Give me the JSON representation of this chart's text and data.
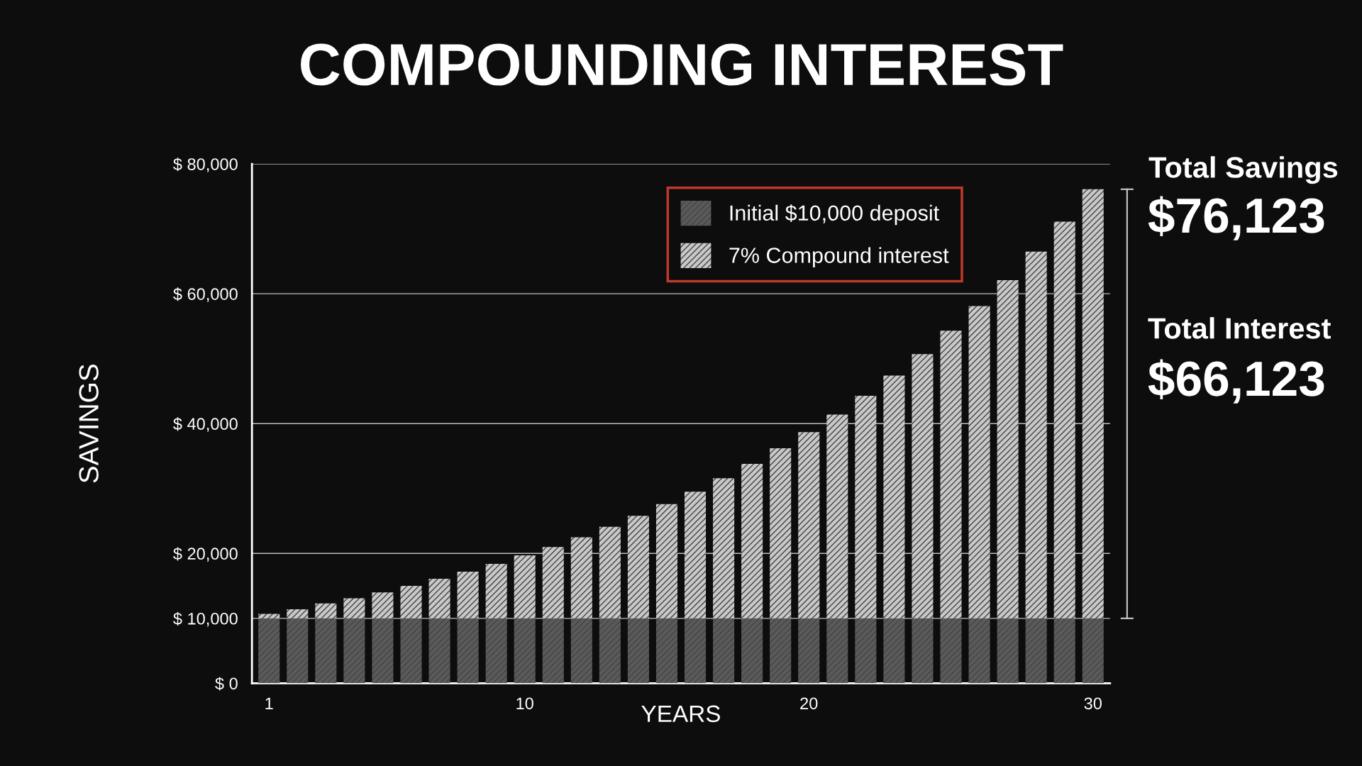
{
  "chart_data": {
    "type": "bar",
    "stacked": true,
    "title": "COMPOUNDING INTEREST",
    "xlabel": "YEARS",
    "ylabel": "SAVINGS",
    "x": [
      1,
      2,
      3,
      4,
      5,
      6,
      7,
      8,
      9,
      10,
      11,
      12,
      13,
      14,
      15,
      16,
      17,
      18,
      19,
      20,
      21,
      22,
      23,
      24,
      25,
      26,
      27,
      28,
      29,
      30
    ],
    "series": [
      {
        "name": "Initial $10,000 deposit",
        "color": "#5a5a5a",
        "values": [
          10000,
          10000,
          10000,
          10000,
          10000,
          10000,
          10000,
          10000,
          10000,
          10000,
          10000,
          10000,
          10000,
          10000,
          10000,
          10000,
          10000,
          10000,
          10000,
          10000,
          10000,
          10000,
          10000,
          10000,
          10000,
          10000,
          10000,
          10000,
          10000,
          10000
        ]
      },
      {
        "name": "7% Compound interest",
        "color": "#c8c8c8",
        "values": [
          700,
          1400,
          2300,
          3100,
          4000,
          5000,
          6100,
          7200,
          8400,
          9700,
          11000,
          12500,
          14100,
          15800,
          17600,
          19500,
          21600,
          23800,
          26200,
          28700,
          31400,
          34300,
          37400,
          40700,
          44300,
          48100,
          52100,
          56500,
          61100,
          66100
        ]
      }
    ],
    "xlim": [
      0.4,
      30.6
    ],
    "xticks": [
      1,
      10,
      20,
      30
    ],
    "ylim": [
      0,
      80000
    ],
    "yticks": [
      {
        "value": 0,
        "label": "$ 0"
      },
      {
        "value": 10000,
        "label": "$ 10,000"
      },
      {
        "value": 20000,
        "label": "$ 20,000"
      },
      {
        "value": 40000,
        "label": "$ 40,000"
      },
      {
        "value": 60000,
        "label": "$ 60,000"
      },
      {
        "value": 80000,
        "label": "$ 80,000"
      }
    ],
    "grid": "y",
    "legend": "top",
    "annotations": [
      "Total Savings",
      "$76,123",
      "Total Interest",
      "$66,123"
    ]
  }
}
